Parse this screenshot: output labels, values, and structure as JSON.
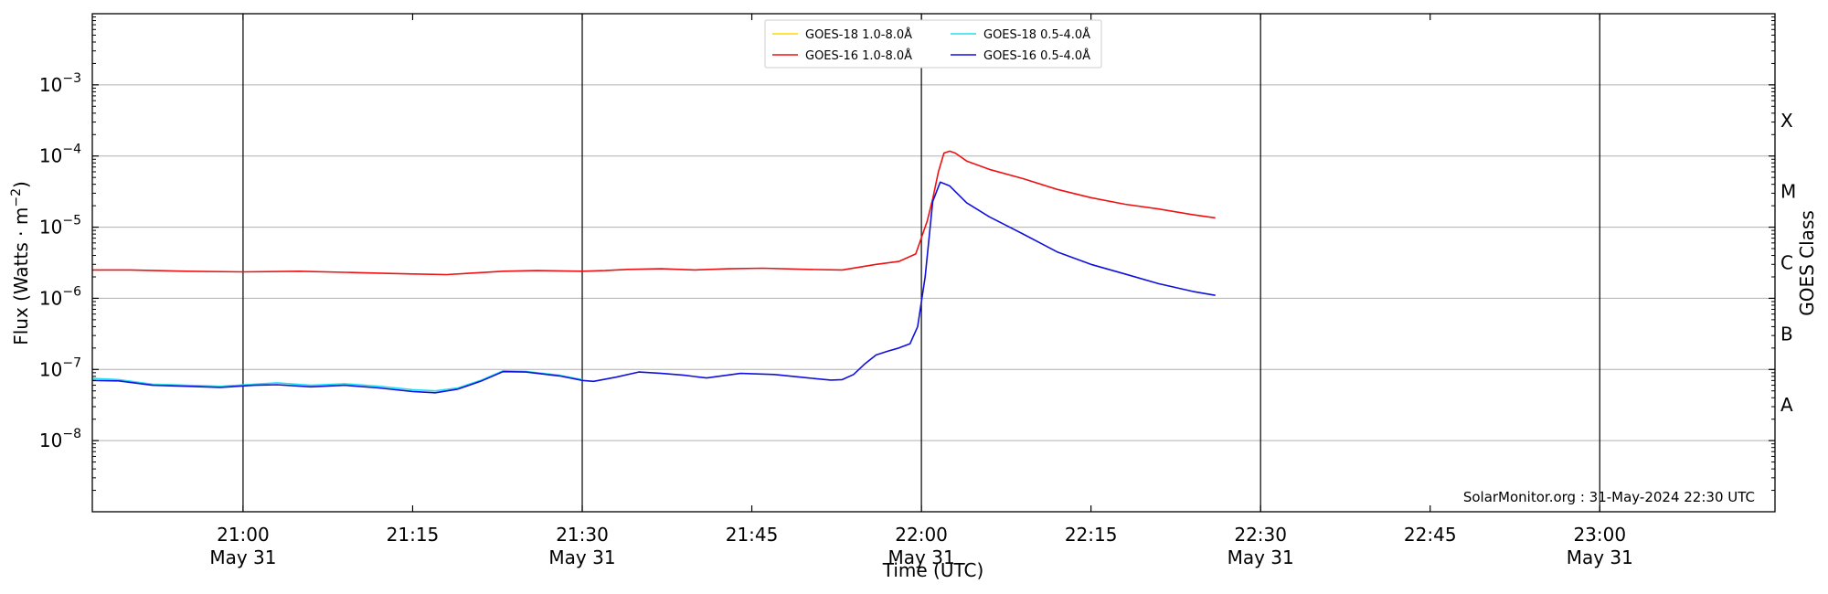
{
  "chart_data": {
    "type": "line",
    "ylabel": "Flux (Watts · m",
    "ylabel_sup": "−2",
    "ylabel_close": ")",
    "xlabel": "Time (UTC)",
    "right_label": "GOES Class",
    "y_scale": "log",
    "ylim": [
      1e-09,
      0.01
    ],
    "xlim": [
      "2024-05-31T20:46:40",
      "2024-05-31T23:15:30"
    ],
    "grid": "horizontal at decades; vertical at half-hours",
    "legend_placement": "top-center",
    "y_ticks": [
      {
        "value": 1e-08,
        "base": "10",
        "exp": "−8"
      },
      {
        "value": 1e-07,
        "base": "10",
        "exp": "−7"
      },
      {
        "value": 1e-06,
        "base": "10",
        "exp": "−6"
      },
      {
        "value": 1e-05,
        "base": "10",
        "exp": "−5"
      },
      {
        "value": 0.0001,
        "base": "10",
        "exp": "−4"
      },
      {
        "value": 0.001,
        "base": "10",
        "exp": "−3"
      }
    ],
    "x_ticks": [
      {
        "time": "2024-05-31T21:00:00",
        "label": "21:00",
        "date": "May 31"
      },
      {
        "time": "2024-05-31T21:15:00",
        "label": "21:15",
        "date": ""
      },
      {
        "time": "2024-05-31T21:30:00",
        "label": "21:30",
        "date": "May 31"
      },
      {
        "time": "2024-05-31T21:45:00",
        "label": "21:45",
        "date": ""
      },
      {
        "time": "2024-05-31T22:00:00",
        "label": "22:00",
        "date": "May 31"
      },
      {
        "time": "2024-05-31T22:15:00",
        "label": "22:15",
        "date": ""
      },
      {
        "time": "2024-05-31T22:30:00",
        "label": "22:30",
        "date": "May 31"
      },
      {
        "time": "2024-05-31T22:45:00",
        "label": "22:45",
        "date": ""
      },
      {
        "time": "2024-05-31T23:00:00",
        "label": "23:00",
        "date": "May 31"
      }
    ],
    "goes_classes": [
      {
        "label": "X",
        "flux": 0.0001
      },
      {
        "label": "M",
        "flux": 1e-05
      },
      {
        "label": "C",
        "flux": 1e-06
      },
      {
        "label": "B",
        "flux": 1e-07
      },
      {
        "label": "A",
        "flux": 1e-08
      }
    ],
    "series": [
      {
        "name": "GOES-18 1.0-8.0Å",
        "color": "#ffd700",
        "points": []
      },
      {
        "name": "GOES-16 1.0-8.0Å",
        "color": "#ee1111",
        "points": [
          [
            "2024-05-31T20:46:40",
            2.5e-06
          ],
          [
            "2024-05-31T20:50:00",
            2.5e-06
          ],
          [
            "2024-05-31T20:55:00",
            2.4e-06
          ],
          [
            "2024-05-31T21:00:00",
            2.35e-06
          ],
          [
            "2024-05-31T21:05:00",
            2.4e-06
          ],
          [
            "2024-05-31T21:10:00",
            2.3e-06
          ],
          [
            "2024-05-31T21:15:00",
            2.2e-06
          ],
          [
            "2024-05-31T21:18:00",
            2.15e-06
          ],
          [
            "2024-05-31T21:21:00",
            2.3e-06
          ],
          [
            "2024-05-31T21:23:00",
            2.4e-06
          ],
          [
            "2024-05-31T21:26:00",
            2.45e-06
          ],
          [
            "2024-05-31T21:30:00",
            2.4e-06
          ],
          [
            "2024-05-31T21:32:00",
            2.45e-06
          ],
          [
            "2024-05-31T21:34:00",
            2.55e-06
          ],
          [
            "2024-05-31T21:37:00",
            2.6e-06
          ],
          [
            "2024-05-31T21:40:00",
            2.5e-06
          ],
          [
            "2024-05-31T21:43:00",
            2.6e-06
          ],
          [
            "2024-05-31T21:46:00",
            2.65e-06
          ],
          [
            "2024-05-31T21:50:00",
            2.55e-06
          ],
          [
            "2024-05-31T21:53:00",
            2.5e-06
          ],
          [
            "2024-05-31T21:56:00",
            3e-06
          ],
          [
            "2024-05-31T21:58:00",
            3.3e-06
          ],
          [
            "2024-05-31T21:59:30",
            4.2e-06
          ],
          [
            "2024-05-31T22:00:30",
            1.2e-05
          ],
          [
            "2024-05-31T22:01:00",
            2.5e-05
          ],
          [
            "2024-05-31T22:01:30",
            6e-05
          ],
          [
            "2024-05-31T22:02:00",
            0.00011
          ],
          [
            "2024-05-31T22:02:30",
            0.000117
          ],
          [
            "2024-05-31T22:03:00",
            0.00011
          ],
          [
            "2024-05-31T22:04:00",
            8.5e-05
          ],
          [
            "2024-05-31T22:06:00",
            6.5e-05
          ],
          [
            "2024-05-31T22:09:00",
            4.8e-05
          ],
          [
            "2024-05-31T22:12:00",
            3.4e-05
          ],
          [
            "2024-05-31T22:15:00",
            2.6e-05
          ],
          [
            "2024-05-31T22:18:00",
            2.1e-05
          ],
          [
            "2024-05-31T22:21:00",
            1.8e-05
          ],
          [
            "2024-05-31T22:24:00",
            1.5e-05
          ],
          [
            "2024-05-31T22:26:00",
            1.35e-05
          ]
        ]
      },
      {
        "name": "GOES-18 0.5-4.0Å",
        "color": "#22e0ee",
        "points": [
          [
            "2024-05-31T20:46:40",
            7.5e-08
          ],
          [
            "2024-05-31T20:49:00",
            7.2e-08
          ],
          [
            "2024-05-31T20:52:00",
            6.2e-08
          ],
          [
            "2024-05-31T20:55:00",
            6e-08
          ],
          [
            "2024-05-31T20:58:00",
            5.8e-08
          ],
          [
            "2024-05-31T21:01:00",
            6.2e-08
          ],
          [
            "2024-05-31T21:03:00",
            6.5e-08
          ],
          [
            "2024-05-31T21:06:00",
            6e-08
          ],
          [
            "2024-05-31T21:09:00",
            6.3e-08
          ],
          [
            "2024-05-31T21:12:00",
            5.8e-08
          ],
          [
            "2024-05-31T21:15:00",
            5.2e-08
          ],
          [
            "2024-05-31T21:17:00",
            5e-08
          ],
          [
            "2024-05-31T21:19:00",
            5.5e-08
          ],
          [
            "2024-05-31T21:21:00",
            7e-08
          ],
          [
            "2024-05-31T21:23:00",
            9.6e-08
          ],
          [
            "2024-05-31T21:25:00",
            9.4e-08
          ],
          [
            "2024-05-31T21:28:00",
            8.3e-08
          ],
          [
            "2024-05-31T21:30:00",
            7.2e-08
          ]
        ]
      },
      {
        "name": "GOES-16 0.5-4.0Å",
        "color": "#1010dd",
        "points": [
          [
            "2024-05-31T20:46:40",
            7e-08
          ],
          [
            "2024-05-31T20:49:00",
            6.9e-08
          ],
          [
            "2024-05-31T20:52:00",
            6e-08
          ],
          [
            "2024-05-31T20:55:00",
            5.8e-08
          ],
          [
            "2024-05-31T20:58:00",
            5.6e-08
          ],
          [
            "2024-05-31T21:01:00",
            6e-08
          ],
          [
            "2024-05-31T21:03:00",
            6.1e-08
          ],
          [
            "2024-05-31T21:06:00",
            5.7e-08
          ],
          [
            "2024-05-31T21:09:00",
            6e-08
          ],
          [
            "2024-05-31T21:12:00",
            5.5e-08
          ],
          [
            "2024-05-31T21:15:00",
            4.9e-08
          ],
          [
            "2024-05-31T21:17:00",
            4.7e-08
          ],
          [
            "2024-05-31T21:19:00",
            5.3e-08
          ],
          [
            "2024-05-31T21:21:00",
            6.8e-08
          ],
          [
            "2024-05-31T21:23:00",
            9.3e-08
          ],
          [
            "2024-05-31T21:25:00",
            9.2e-08
          ],
          [
            "2024-05-31T21:28:00",
            8.1e-08
          ],
          [
            "2024-05-31T21:30:00",
            7e-08
          ],
          [
            "2024-05-31T21:31:00",
            6.8e-08
          ],
          [
            "2024-05-31T21:33:00",
            7.8e-08
          ],
          [
            "2024-05-31T21:35:00",
            9.2e-08
          ],
          [
            "2024-05-31T21:37:00",
            8.8e-08
          ],
          [
            "2024-05-31T21:39:00",
            8.3e-08
          ],
          [
            "2024-05-31T21:41:00",
            7.6e-08
          ],
          [
            "2024-05-31T21:44:00",
            8.8e-08
          ],
          [
            "2024-05-31T21:47:00",
            8.5e-08
          ],
          [
            "2024-05-31T21:50:00",
            7.6e-08
          ],
          [
            "2024-05-31T21:52:00",
            7.1e-08
          ],
          [
            "2024-05-31T21:53:00",
            7.2e-08
          ],
          [
            "2024-05-31T21:54:00",
            8.5e-08
          ],
          [
            "2024-05-31T21:55:00",
            1.2e-07
          ],
          [
            "2024-05-31T21:56:00",
            1.6e-07
          ],
          [
            "2024-05-31T21:57:00",
            1.8e-07
          ],
          [
            "2024-05-31T21:58:00",
            2e-07
          ],
          [
            "2024-05-31T21:59:00",
            2.3e-07
          ],
          [
            "2024-05-31T21:59:40",
            4e-07
          ],
          [
            "2024-05-31T22:00:20",
            2e-06
          ],
          [
            "2024-05-31T22:01:00",
            2.3e-05
          ],
          [
            "2024-05-31T22:01:40",
            4.3e-05
          ],
          [
            "2024-05-31T22:02:30",
            3.8e-05
          ],
          [
            "2024-05-31T22:04:00",
            2.2e-05
          ],
          [
            "2024-05-31T22:06:00",
            1.4e-05
          ],
          [
            "2024-05-31T22:09:00",
            8e-06
          ],
          [
            "2024-05-31T22:12:00",
            4.5e-06
          ],
          [
            "2024-05-31T22:15:00",
            3e-06
          ],
          [
            "2024-05-31T22:18:00",
            2.2e-06
          ],
          [
            "2024-05-31T22:21:00",
            1.6e-06
          ],
          [
            "2024-05-31T22:24:00",
            1.25e-06
          ],
          [
            "2024-05-31T22:26:00",
            1.1e-06
          ]
        ]
      }
    ],
    "annotation": "SolarMonitor.org : 31-May-2024 22:30 UTC"
  }
}
